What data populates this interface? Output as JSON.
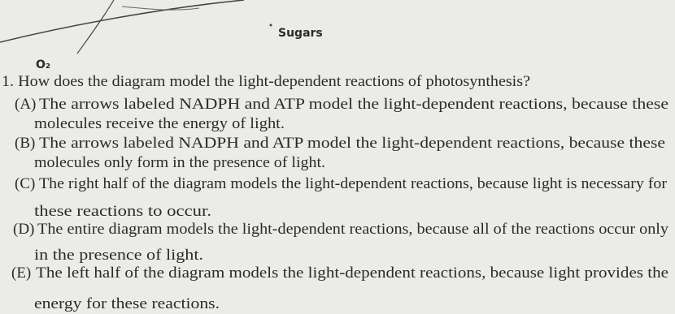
{
  "diagram": {
    "labels": [
      "Sugars",
      "O₂"
    ]
  },
  "question": {
    "text": "1. How does the diagram model the light-dependent reactions of photosynthesis?",
    "options": [
      {
        "letter": "(A)",
        "lines": [
          "The arrows labeled NADPH and ATP model the light-dependent reactions, because these",
          "molecules receive the energy of light."
        ]
      },
      {
        "letter": "(B)",
        "lines": [
          "The arrows labeled NADPH and ATP model the light-dependent reactions, because these",
          "molecules only form in the presence of light."
        ]
      },
      {
        "letter": "(C)",
        "lines": [
          "The right half of the diagram models the light-dependent reactions, because light is necessary for",
          "these reactions to occur."
        ]
      },
      {
        "letter": "(D)",
        "lines": [
          "The entire diagram models the light-dependent reactions, because all of the reactions occur only",
          "in the presence of light."
        ]
      },
      {
        "letter": "(E)",
        "lines": [
          "The left half of the diagram models the light-dependent reactions, because light provides the",
          "energy for these reactions."
        ]
      }
    ]
  }
}
